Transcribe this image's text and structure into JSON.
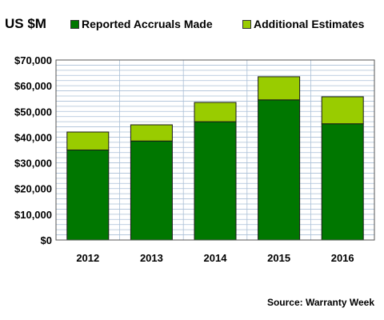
{
  "chart_data": {
    "type": "bar",
    "stacked": true,
    "unit_label": "US $M",
    "categories": [
      "2012",
      "2013",
      "2014",
      "2015",
      "2016"
    ],
    "series": [
      {
        "name": "Reported Accruals Made",
        "color": "#007700",
        "values": [
          35000,
          38500,
          46000,
          54500,
          45200
        ]
      },
      {
        "name": "Additional Estimates",
        "color": "#99cc00",
        "values": [
          7000,
          6300,
          7500,
          9000,
          10500
        ]
      }
    ],
    "y_ticks": [
      "$0",
      "$10,000",
      "$20,000",
      "$30,000",
      "$40,000",
      "$50,000",
      "$60,000",
      "$70,000"
    ],
    "ylim": [
      0,
      70000
    ],
    "grid": true,
    "legend_position": "top",
    "source": "Source: Warranty Week"
  }
}
